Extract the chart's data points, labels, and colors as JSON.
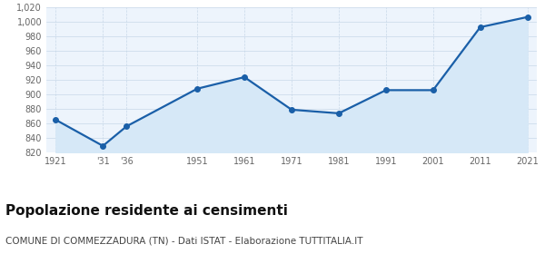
{
  "years": [
    1921,
    1931,
    1936,
    1951,
    1961,
    1971,
    1981,
    1991,
    2001,
    2011,
    2021
  ],
  "x_labels": [
    "1921",
    "'31",
    "'36",
    "1951",
    "1961",
    "1971",
    "1981",
    "1991",
    "2001",
    "2011",
    "2021"
  ],
  "population": [
    865,
    829,
    856,
    908,
    924,
    879,
    874,
    906,
    906,
    993,
    1007
  ],
  "line_color": "#1a5fa8",
  "fill_color": "#d6e8f7",
  "marker": "o",
  "markersize": 4,
  "linewidth": 1.6,
  "ylim": [
    820,
    1020
  ],
  "yticks": [
    820,
    840,
    860,
    880,
    900,
    920,
    940,
    960,
    980,
    1000,
    1020
  ],
  "title": "Popolazione residente ai censimenti",
  "subtitle": "COMUNE DI COMMEZZADURA (TN) - Dati ISTAT - Elaborazione TUTTITALIA.IT",
  "title_fontsize": 11,
  "subtitle_fontsize": 7.5,
  "background_color": "#edf4fc",
  "grid_color_h": "#c8d8e8",
  "grid_color_v": "#c8d8e8",
  "tick_color": "#666666"
}
